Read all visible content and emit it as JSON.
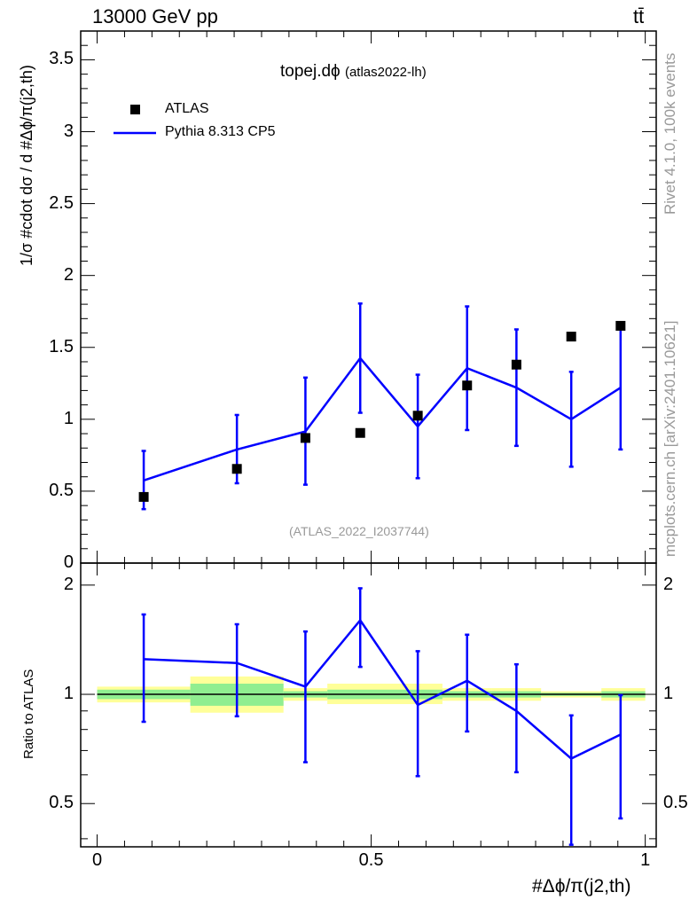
{
  "header": {
    "left_title": "13000 GeV pp",
    "right_title": "tt̄"
  },
  "plot_title": {
    "main": "topej.dϕ",
    "sub": "(atlas2022-lh)"
  },
  "watermark": "(ATLAS_2022_I2037744)",
  "side_labels": {
    "rivet": "Rivet 4.1.0,  100k events",
    "mcplots": "mcplots.cern.ch [arXiv:2401.10621]"
  },
  "legend": {
    "data_label": "ATLAS",
    "mc_label": "Pythia 8.313 CP5"
  },
  "colors": {
    "data": "#000000",
    "mc": "#0000ff",
    "band_inner": "#90ee90",
    "band_outer": "#ffff99",
    "ref_line": "#000000"
  },
  "chart_data": [
    {
      "type": "scatter",
      "panel": "main",
      "ylabel": "1/σ #cdot dσ / d #Δϕ/π(j2,th)",
      "ylim": [
        0,
        3.7
      ],
      "xlim": [
        -0.03,
        1.02
      ],
      "yticks": [
        0,
        0.5,
        1,
        1.5,
        2,
        2.5,
        3,
        3.5
      ],
      "ytick_labels": [
        "0",
        "0.5",
        "1",
        "1.5",
        "2",
        "2.5",
        "3",
        "3.5"
      ],
      "series": [
        {
          "name": "ATLAS",
          "x": [
            0.085,
            0.255,
            0.38,
            0.48,
            0.585,
            0.675,
            0.765,
            0.865,
            0.955
          ],
          "y": [
            0.46,
            0.655,
            0.87,
            0.905,
            1.025,
            1.235,
            1.38,
            1.575,
            1.65
          ]
        },
        {
          "name": "Pythia 8.313 CP5",
          "x": [
            0.085,
            0.255,
            0.38,
            0.48,
            0.585,
            0.675,
            0.765,
            0.865,
            0.955
          ],
          "y": [
            0.575,
            0.79,
            0.915,
            1.425,
            0.95,
            1.355,
            1.22,
            1.0,
            1.22
          ],
          "yerr_low": [
            0.2,
            0.235,
            0.37,
            0.38,
            0.36,
            0.43,
            0.405,
            0.33,
            0.43
          ],
          "yerr_high": [
            0.205,
            0.24,
            0.375,
            0.38,
            0.36,
            0.43,
            0.405,
            0.33,
            0.43
          ]
        }
      ]
    },
    {
      "type": "line",
      "panel": "ratio",
      "ylabel": "Ratio to ATLAS",
      "xlabel": "#Δϕ/π(j2,th)",
      "xlim": [
        -0.03,
        1.02
      ],
      "yscale": "log",
      "ylim": [
        0.38,
        2.3
      ],
      "yticks": [
        0.5,
        1,
        2
      ],
      "ytick_labels": [
        "0.5",
        "1",
        "2"
      ],
      "xticks": [
        0,
        0.5,
        1
      ],
      "xtick_labels": [
        "0",
        "0.5",
        "1"
      ],
      "ref_line": 1,
      "bands": [
        {
          "x0": 0.0,
          "x1": 0.17,
          "inner": [
            0.97,
            1.03
          ],
          "outer": [
            0.95,
            1.05
          ]
        },
        {
          "x0": 0.17,
          "x1": 0.34,
          "inner": [
            0.93,
            1.07
          ],
          "outer": [
            0.89,
            1.12
          ]
        },
        {
          "x0": 0.34,
          "x1": 0.42,
          "inner": [
            0.98,
            1.02
          ],
          "outer": [
            0.96,
            1.04
          ]
        },
        {
          "x0": 0.42,
          "x1": 0.63,
          "inner": [
            0.97,
            1.03
          ],
          "outer": [
            0.94,
            1.07
          ]
        },
        {
          "x0": 0.63,
          "x1": 0.72,
          "inner": [
            0.98,
            1.02
          ],
          "outer": [
            0.96,
            1.04
          ]
        },
        {
          "x0": 0.72,
          "x1": 0.81,
          "inner": [
            0.98,
            1.02
          ],
          "outer": [
            0.96,
            1.04
          ]
        },
        {
          "x0": 0.81,
          "x1": 0.92,
          "inner": [
            0.99,
            1.01
          ],
          "outer": [
            0.98,
            1.02
          ]
        },
        {
          "x0": 0.92,
          "x1": 1.0,
          "inner": [
            0.98,
            1.02
          ],
          "outer": [
            0.96,
            1.04
          ]
        }
      ],
      "series": [
        {
          "name": "Pythia 8.313 CP5 / ATLAS",
          "x": [
            0.085,
            0.255,
            0.38,
            0.48,
            0.585,
            0.675,
            0.765,
            0.865,
            0.955
          ],
          "y": [
            1.25,
            1.22,
            1.05,
            1.6,
            0.935,
            1.09,
            0.9,
            0.665,
            0.775
          ],
          "yerr_low": [
            0.41,
            0.35,
            0.4,
            0.41,
            0.34,
            0.3,
            0.29,
            0.28,
            0.32
          ],
          "yerr_high": [
            0.41,
            0.34,
            0.44,
            0.36,
            0.38,
            0.37,
            0.31,
            0.21,
            0.22
          ]
        }
      ]
    }
  ]
}
